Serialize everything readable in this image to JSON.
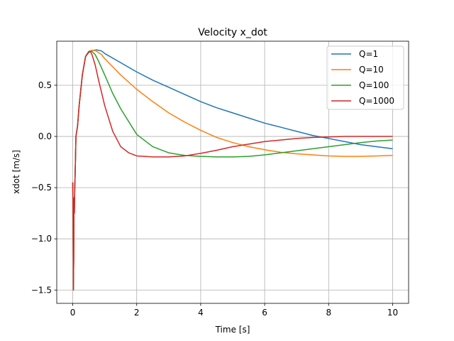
{
  "chart_data": {
    "type": "line",
    "title": "Velocity x_dot",
    "xlabel": "Time [s]",
    "ylabel": "xdot [m/s]",
    "xlim": [
      -0.5,
      10.5
    ],
    "ylim": [
      -1.63,
      0.93
    ],
    "xticks": [
      0,
      2,
      4,
      6,
      8,
      10
    ],
    "xtick_labels": [
      "0",
      "2",
      "4",
      "6",
      "8",
      "10"
    ],
    "yticks": [
      -1.5,
      -1.0,
      -0.5,
      0.0,
      0.5
    ],
    "ytick_labels": [
      "−1.5",
      "−1.0",
      "−0.5",
      "0.0",
      "0.5"
    ],
    "grid": true,
    "legend_position": "top-right",
    "series": [
      {
        "name": "Q=1",
        "color": "#1f77b4",
        "x": [
          0,
          0.01,
          0.02,
          0.03,
          0.04,
          0.05,
          0.06,
          0.08,
          0.1,
          0.15,
          0.2,
          0.3,
          0.4,
          0.5,
          0.6,
          0.75,
          0.9,
          1.0,
          1.5,
          2,
          2.5,
          3,
          3.5,
          4,
          4.5,
          5,
          5.5,
          6,
          6.5,
          7,
          7.5,
          8,
          8.5,
          9,
          9.5,
          10
        ],
        "y": [
          -0.45,
          -0.8,
          -1.5,
          -1.2,
          -0.6,
          -0.75,
          -0.55,
          -0.3,
          0.0,
          0.1,
          0.3,
          0.6,
          0.78,
          0.83,
          0.84,
          0.845,
          0.835,
          0.81,
          0.72,
          0.63,
          0.55,
          0.48,
          0.41,
          0.34,
          0.28,
          0.23,
          0.18,
          0.13,
          0.09,
          0.05,
          0.01,
          -0.02,
          -0.05,
          -0.08,
          -0.1,
          -0.12
        ]
      },
      {
        "name": "Q=10",
        "color": "#ff7f0e",
        "x": [
          0,
          0.01,
          0.02,
          0.03,
          0.04,
          0.05,
          0.06,
          0.08,
          0.1,
          0.15,
          0.2,
          0.3,
          0.4,
          0.5,
          0.6,
          0.7,
          0.9,
          1.0,
          1.5,
          2,
          2.5,
          3,
          3.5,
          4,
          4.5,
          5,
          5.5,
          6,
          6.5,
          7,
          7.5,
          8,
          8.5,
          9,
          9.5,
          10
        ],
        "y": [
          -0.45,
          -0.8,
          -1.5,
          -1.2,
          -0.6,
          -0.75,
          -0.55,
          -0.3,
          0.0,
          0.1,
          0.3,
          0.6,
          0.78,
          0.83,
          0.84,
          0.84,
          0.8,
          0.76,
          0.6,
          0.46,
          0.34,
          0.23,
          0.14,
          0.06,
          -0.01,
          -0.06,
          -0.1,
          -0.13,
          -0.155,
          -0.17,
          -0.18,
          -0.19,
          -0.195,
          -0.195,
          -0.19,
          -0.185
        ]
      },
      {
        "name": "Q=100",
        "color": "#2ca02c",
        "x": [
          0,
          0.01,
          0.02,
          0.03,
          0.04,
          0.05,
          0.06,
          0.08,
          0.1,
          0.15,
          0.2,
          0.3,
          0.4,
          0.5,
          0.6,
          0.7,
          0.8,
          1.0,
          1.25,
          1.5,
          2,
          2.5,
          3,
          3.5,
          4,
          4.5,
          5,
          5.5,
          6,
          6.5,
          7,
          7.5,
          8,
          8.5,
          9,
          9.5,
          10
        ],
        "y": [
          -0.45,
          -0.8,
          -1.5,
          -1.2,
          -0.6,
          -0.75,
          -0.55,
          -0.3,
          0.0,
          0.1,
          0.3,
          0.6,
          0.78,
          0.83,
          0.83,
          0.8,
          0.74,
          0.6,
          0.42,
          0.27,
          0.02,
          -0.1,
          -0.16,
          -0.185,
          -0.195,
          -0.2,
          -0.2,
          -0.195,
          -0.18,
          -0.16,
          -0.14,
          -0.12,
          -0.1,
          -0.08,
          -0.06,
          -0.045,
          -0.035
        ]
      },
      {
        "name": "Q=1000",
        "color": "#d62728",
        "x": [
          0,
          0.01,
          0.02,
          0.03,
          0.04,
          0.05,
          0.06,
          0.08,
          0.1,
          0.15,
          0.2,
          0.3,
          0.4,
          0.5,
          0.55,
          0.6,
          0.7,
          0.8,
          1.0,
          1.25,
          1.5,
          1.75,
          2,
          2.5,
          3,
          3.5,
          4,
          4.5,
          5,
          5.5,
          6,
          6.5,
          7,
          7.5,
          8,
          8.5,
          9,
          9.5,
          10
        ],
        "y": [
          -0.45,
          -0.8,
          -1.5,
          -1.2,
          -0.6,
          -0.75,
          -0.55,
          -0.3,
          0.0,
          0.1,
          0.3,
          0.6,
          0.78,
          0.82,
          0.83,
          0.8,
          0.7,
          0.56,
          0.3,
          0.05,
          -0.1,
          -0.16,
          -0.19,
          -0.2,
          -0.2,
          -0.19,
          -0.165,
          -0.135,
          -0.1,
          -0.075,
          -0.05,
          -0.035,
          -0.02,
          -0.01,
          -0.005,
          0.0,
          0.0,
          0.0,
          0.0
        ]
      }
    ]
  }
}
